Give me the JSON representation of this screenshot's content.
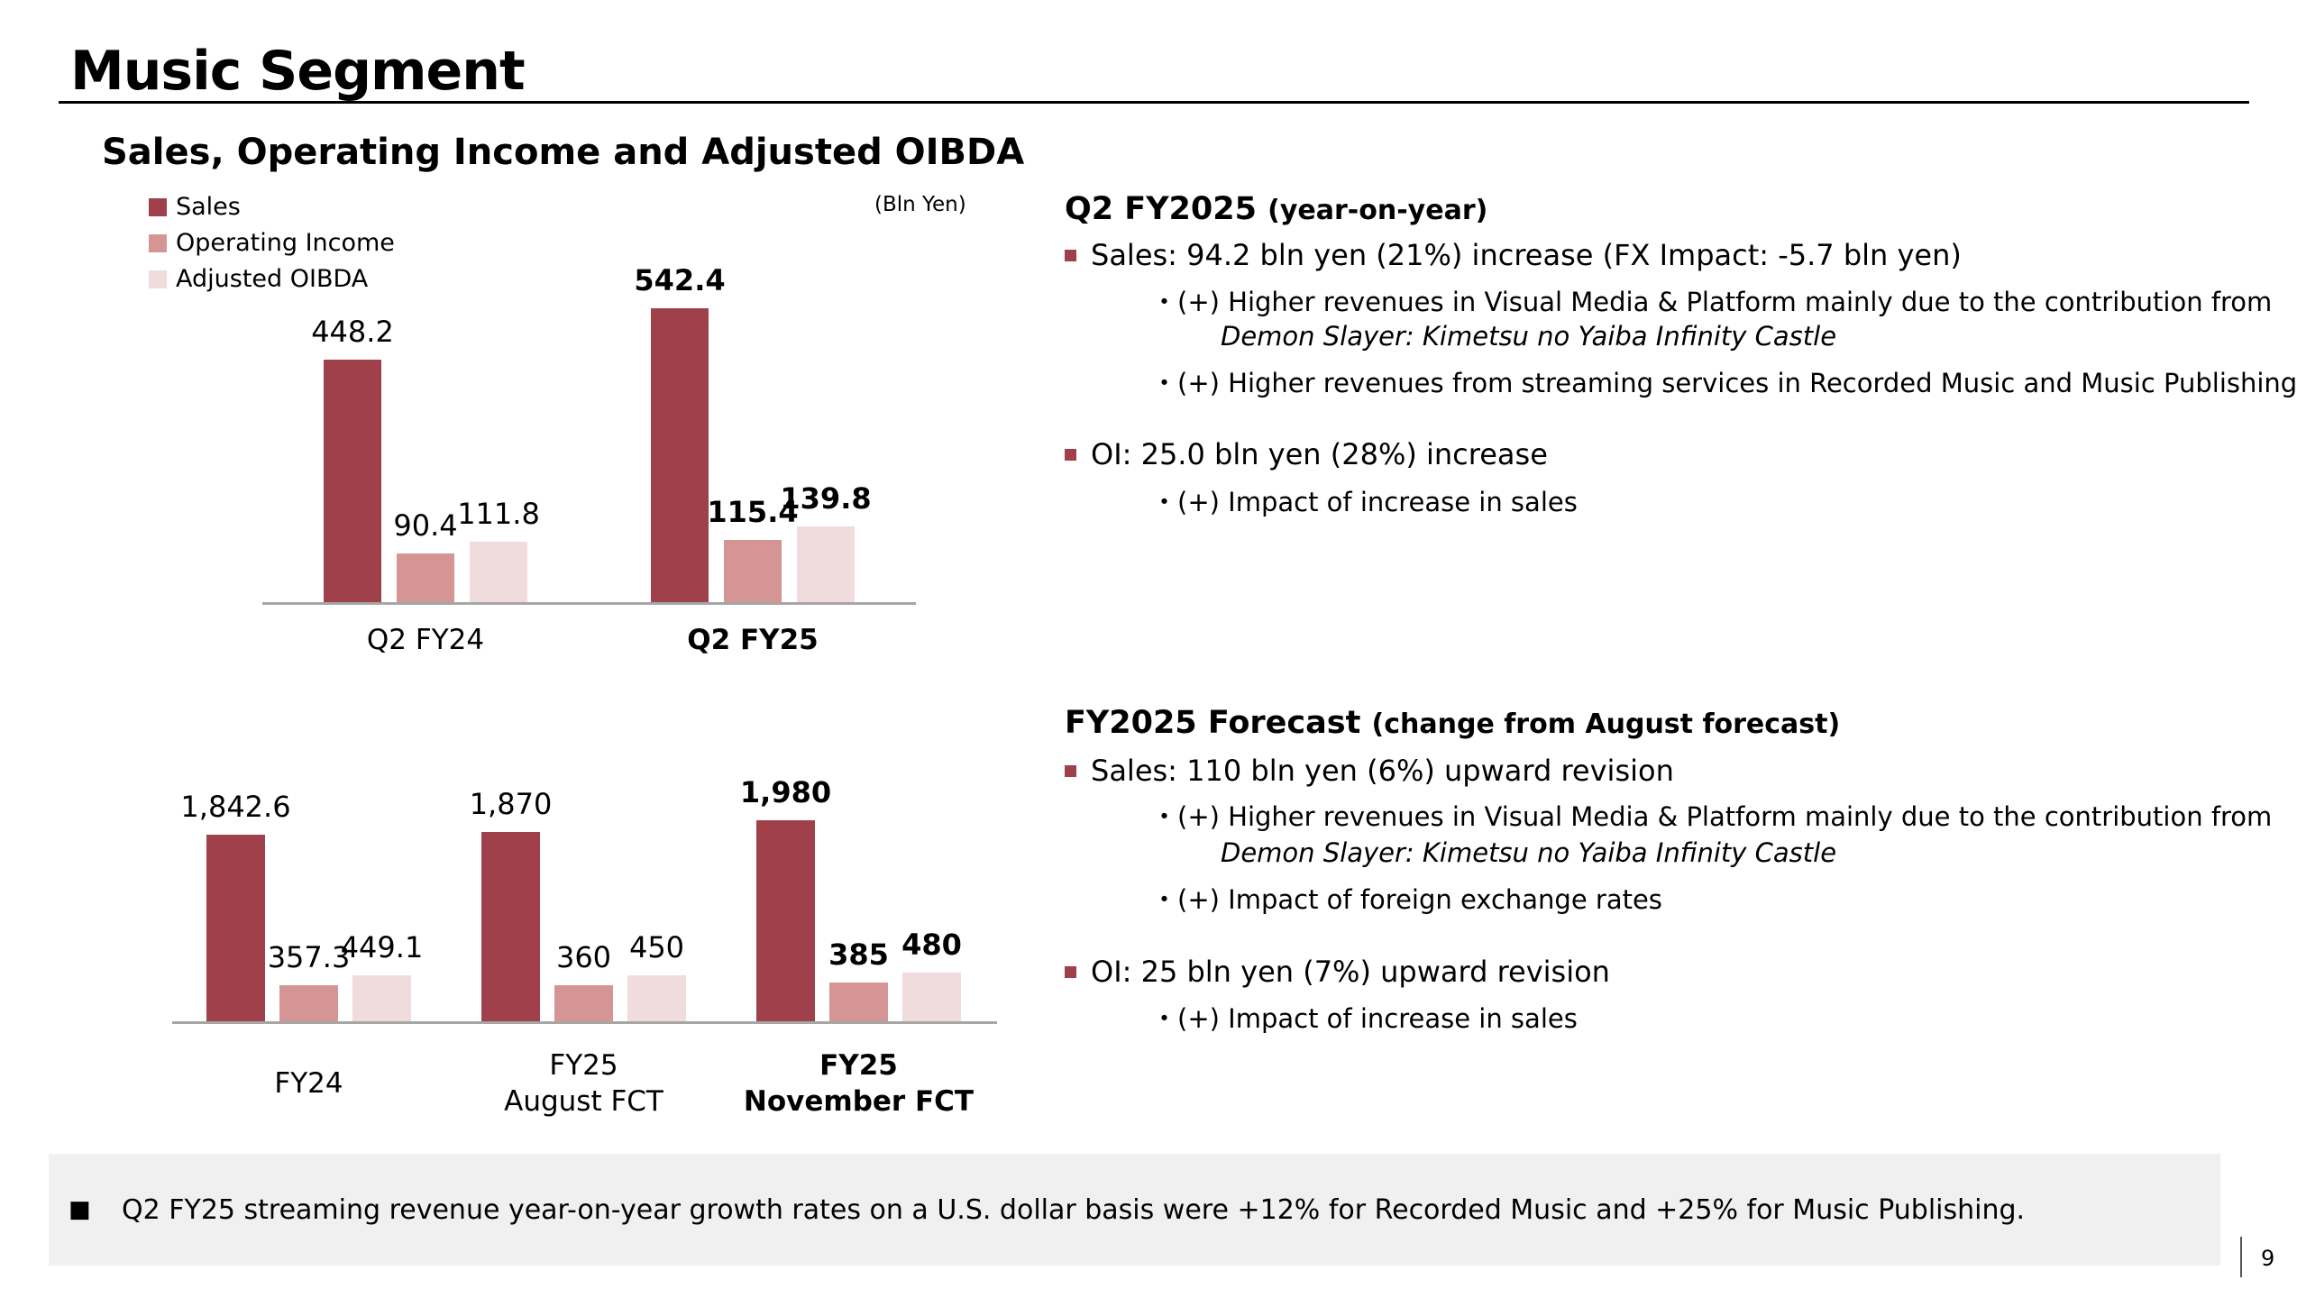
{
  "title": "Music Segment",
  "chart_section": {
    "subtitle": "Sales, Operating Income and Adjusted OIBDA",
    "unit": "(Bln Yen)",
    "legend": [
      "Sales",
      "Operating Income",
      "Adjusted OIBDA"
    ]
  },
  "chart_data": [
    {
      "type": "bar",
      "categories": [
        "Q2 FY24",
        "Q2 FY25"
      ],
      "bold_categories": [
        false,
        true
      ],
      "series": [
        {
          "name": "Sales",
          "color": "#a0404a",
          "values": [
            448.2,
            542.4
          ],
          "labels": [
            "448.2",
            "542.4"
          ]
        },
        {
          "name": "Operating Income",
          "color": "#d49594",
          "values": [
            90.4,
            115.4
          ],
          "labels": [
            "90.4",
            "115.4"
          ]
        },
        {
          "name": "Adjusted OIBDA",
          "color": "#f0dcdc",
          "values": [
            111.8,
            139.8
          ],
          "labels": [
            "111.8",
            "139.8"
          ]
        }
      ],
      "ylim": [
        0,
        600
      ],
      "grid": false,
      "legend": "top-left"
    },
    {
      "type": "bar",
      "categories": [
        [
          "FY24"
        ],
        [
          "FY25",
          "August FCT"
        ],
        [
          "FY25",
          "November FCT"
        ]
      ],
      "bold_categories": [
        false,
        false,
        true
      ],
      "series": [
        {
          "name": "Sales",
          "color": "#a0404a",
          "values": [
            1842.6,
            1870,
            1980
          ],
          "labels": [
            "1,842.6",
            "1,870",
            "1,980"
          ]
        },
        {
          "name": "Operating Income",
          "color": "#d49594",
          "values": [
            357.3,
            360,
            385
          ],
          "labels": [
            "357.3",
            "360",
            "385"
          ]
        },
        {
          "name": "Adjusted OIBDA",
          "color": "#f0dcdc",
          "values": [
            449.1,
            450,
            480
          ],
          "labels": [
            "449.1",
            "450",
            "480"
          ]
        }
      ],
      "ylim": [
        0,
        2200
      ],
      "grid": false
    }
  ],
  "q2": {
    "heading": "Q2 FY2025",
    "heading_note": "(year-on-year)",
    "sales": "Sales: 94.2 bln yen (21%) increase (FX Impact: -5.7 bln yen)",
    "sales_sub1": "・(+) Higher revenues in Visual Media & Platform mainly due to the contribution from",
    "sales_sub1_title": "Demon Slayer: Kimetsu no Yaiba Infinity Castle",
    "sales_sub2": "・(+) Higher revenues from streaming services in Recorded Music and Music Publishing",
    "oi": "OI: 25.0 bln yen (28%) increase",
    "oi_sub1": "・(+) Impact of increase in sales"
  },
  "forecast": {
    "heading": "FY2025 Forecast",
    "heading_note": "(change from August forecast)",
    "sales": "Sales: 110 bln yen (6%) upward revision",
    "sales_sub1": "・(+) Higher revenues in Visual Media & Platform mainly due to the contribution from",
    "sales_sub1_title": "Demon Slayer: Kimetsu no Yaiba Infinity Castle",
    "sales_sub2": "・(+) Impact of foreign exchange rates",
    "oi": "OI: 25 bln yen (7%) upward revision",
    "oi_sub1": "・(+) Impact of increase in sales"
  },
  "footer": {
    "bullet": "■",
    "text": "Q2 FY25 streaming revenue year-on-year growth rates on a U.S. dollar basis were +12% for Recorded Music and +25% for Music Publishing."
  },
  "page_number": "9"
}
